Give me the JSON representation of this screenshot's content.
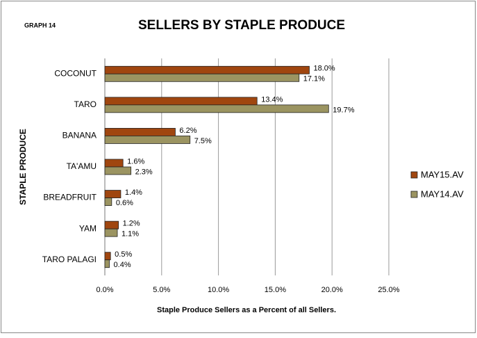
{
  "chart_data": {
    "type": "bar",
    "orientation": "horizontal",
    "label": "GRAPH 14",
    "title": "SELLERS BY STAPLE PRODUCE",
    "x_label": "Staple Produce Sellers as a Percent of all Sellers.",
    "y_label": "STAPLE PRODUCE",
    "categories": [
      "COCONUT",
      "TARO",
      "BANANA",
      "TA'AMU",
      "BREADFRUIT",
      "YAM",
      "TARO PALAGI"
    ],
    "series": [
      {
        "name": "MAY15.AV",
        "color": "#a0460f",
        "values": [
          18.0,
          13.4,
          6.2,
          1.6,
          1.4,
          1.2,
          0.5
        ],
        "value_labels": [
          "18.0%",
          "13.4%",
          "6.2%",
          "1.6%",
          "1.4%",
          "1.2%",
          "0.5%"
        ]
      },
      {
        "name": "MAY14.AV",
        "color": "#9b9461",
        "values": [
          17.1,
          19.7,
          7.5,
          2.3,
          0.6,
          1.1,
          0.4
        ],
        "value_labels": [
          "17.1%",
          "19.7%",
          "7.5%",
          "2.3%",
          "0.6%",
          "1.1%",
          "0.4%"
        ]
      }
    ],
    "xlim": [
      0,
      25
    ],
    "xticks": [
      {
        "value": 0,
        "label": "0.0%"
      },
      {
        "value": 5,
        "label": "5.0%"
      },
      {
        "value": 10,
        "label": "10.0%"
      },
      {
        "value": 15,
        "label": "15.0%"
      },
      {
        "value": 20,
        "label": "20.0%"
      },
      {
        "value": 25,
        "label": "25.0%"
      }
    ],
    "grid": true,
    "legend": "right"
  }
}
